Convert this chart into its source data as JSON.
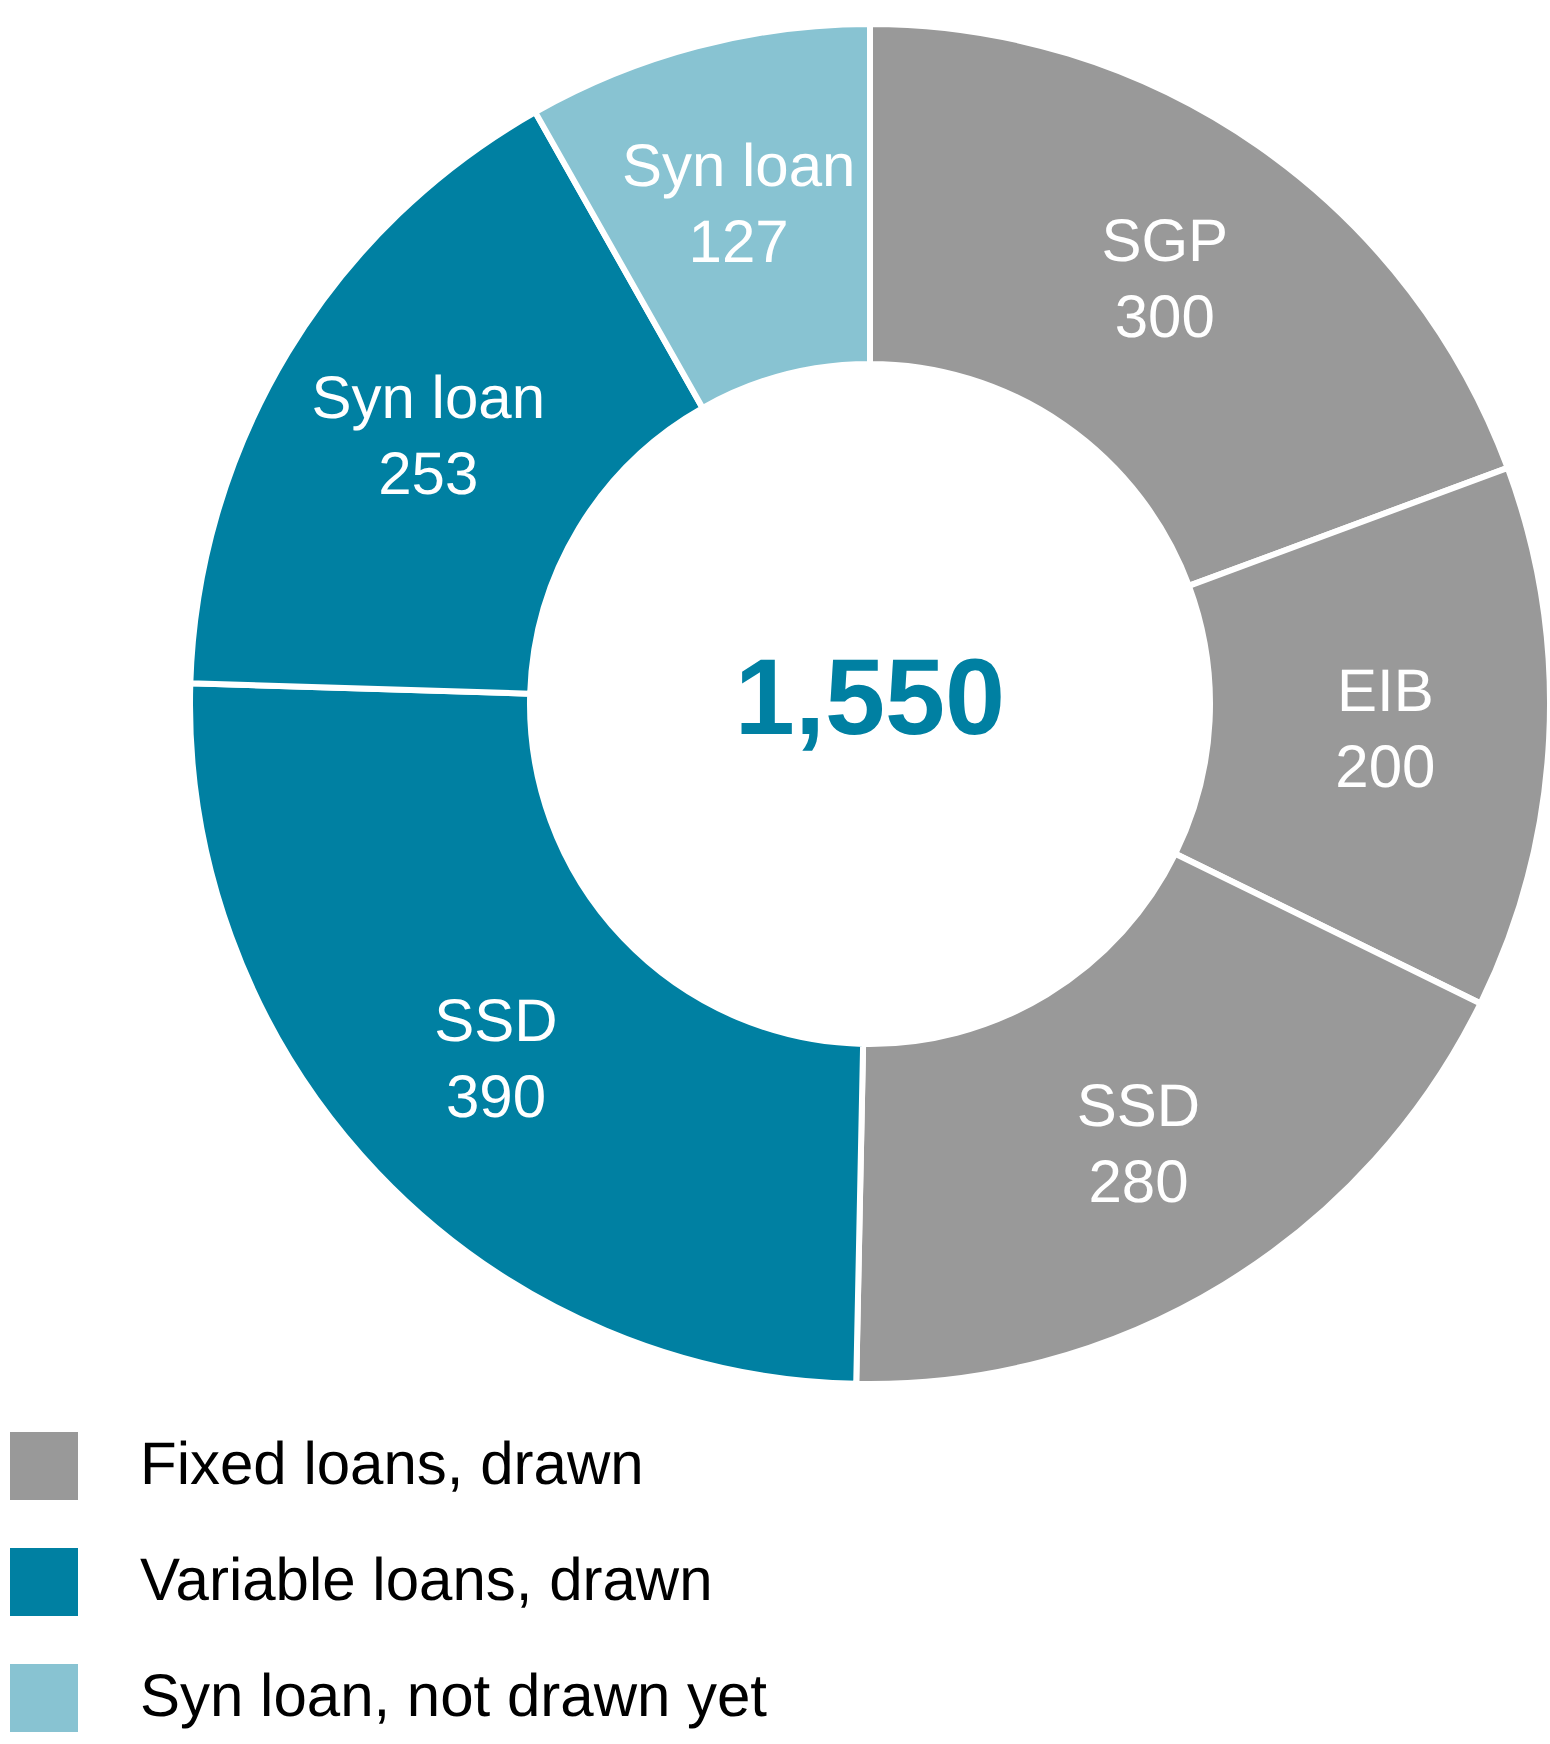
{
  "chart_data": {
    "type": "donut",
    "categories": [
      "SGP",
      "EIB",
      "SSD",
      "SSD",
      "Syn loan",
      "Syn loan"
    ],
    "values": [
      300,
      200,
      280,
      390,
      253,
      127
    ],
    "colors": [
      "#999999",
      "#999999",
      "#999999",
      "#0080a2",
      "#0080a2",
      "#88c3d2"
    ],
    "annotations": [
      "1,550",
      "Fixed loans, drawn",
      "Variable loans, drawn",
      "Syn loan, not drawn yet"
    ],
    "data_labels": true
  }
}
